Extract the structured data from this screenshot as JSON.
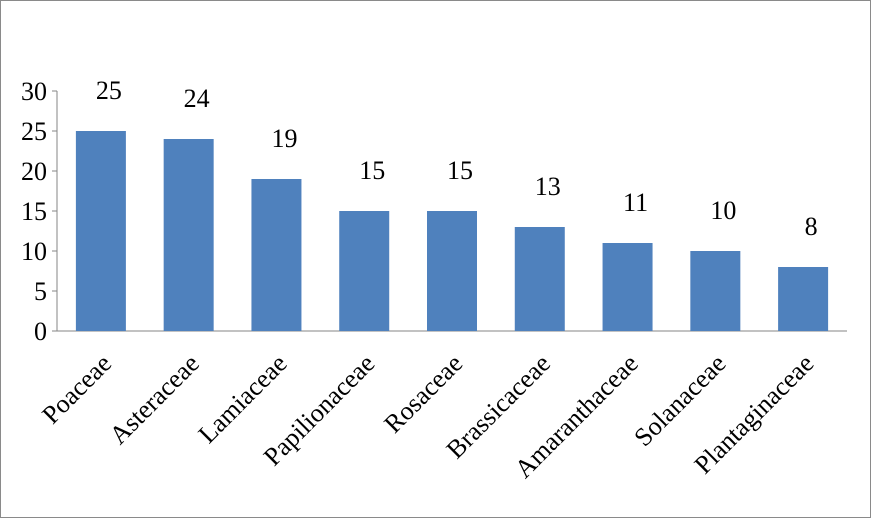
{
  "chart_data": {
    "type": "bar",
    "title": "",
    "xlabel": "",
    "ylabel": "",
    "categories": [
      "Poaceae",
      "Asteraceae",
      "Lamiaceae",
      "Papilionaceae",
      "Rosaceae",
      "Brassicaceae",
      "Amaranthaceae",
      "Solanaceae",
      "Plantaginaceae"
    ],
    "values": [
      25,
      24,
      19,
      15,
      15,
      13,
      11,
      10,
      8
    ],
    "ylim": [
      0,
      30
    ],
    "yticks": [
      0,
      5,
      10,
      15,
      20,
      25,
      30
    ],
    "grid": false,
    "legend": "none",
    "bar_color": "#4f81bd",
    "data_labels": true
  }
}
